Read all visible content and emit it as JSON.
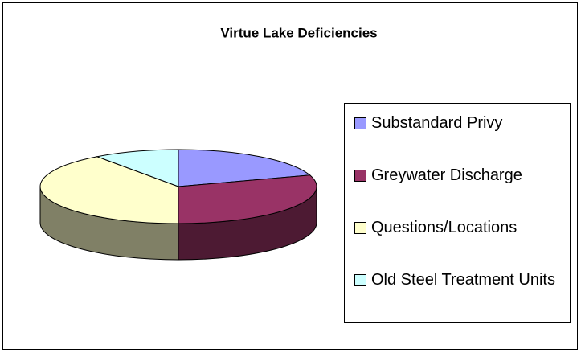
{
  "chart_data": {
    "type": "pie",
    "title": "Virtue Lake Deficiencies",
    "categories": [
      "Substandard Privy",
      "Greywater Discharge",
      "Questions/Locations",
      "Old Steel Treatment Units"
    ],
    "values": [
      20,
      30,
      40,
      10
    ],
    "colors": [
      "#9999ff",
      "#993366",
      "#ffffcc",
      "#ccffff"
    ],
    "legend": "right"
  }
}
